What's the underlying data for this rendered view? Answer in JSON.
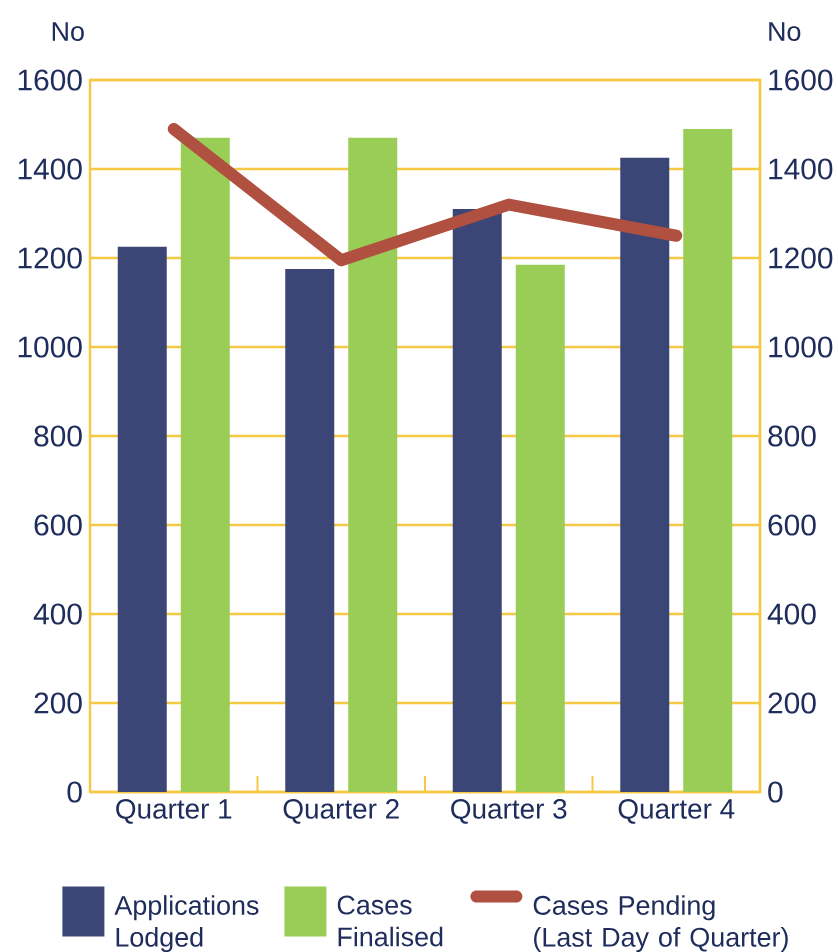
{
  "chart_data": {
    "type": "bar",
    "categories": [
      "Quarter 1",
      "Quarter 2",
      "Quarter 3",
      "Quarter 4"
    ],
    "series": [
      {
        "name": "Applications Lodged",
        "color": "#3c4676",
        "values": [
          1225,
          1175,
          1310,
          1425
        ]
      },
      {
        "name": "Cases Finalised",
        "color": "#9acd55",
        "values": [
          1470,
          1470,
          1185,
          1490
        ]
      },
      {
        "name": "Cases Pending (Last Day of Quarter)",
        "type": "line",
        "axis": "y2",
        "color": "#b05040",
        "values": [
          1490,
          1195,
          1320,
          1250
        ]
      }
    ],
    "ylabel": "No",
    "y2label": "No",
    "ylim": [
      0,
      1600
    ],
    "yticks": [
      0,
      200,
      400,
      600,
      800,
      1000,
      1200,
      1400,
      1600
    ],
    "y2lim": [
      0,
      1600
    ],
    "y2ticks": [
      0,
      200,
      400,
      600,
      800,
      1000,
      1200,
      1400,
      1600
    ],
    "grid": "y",
    "legend": "bottom"
  }
}
